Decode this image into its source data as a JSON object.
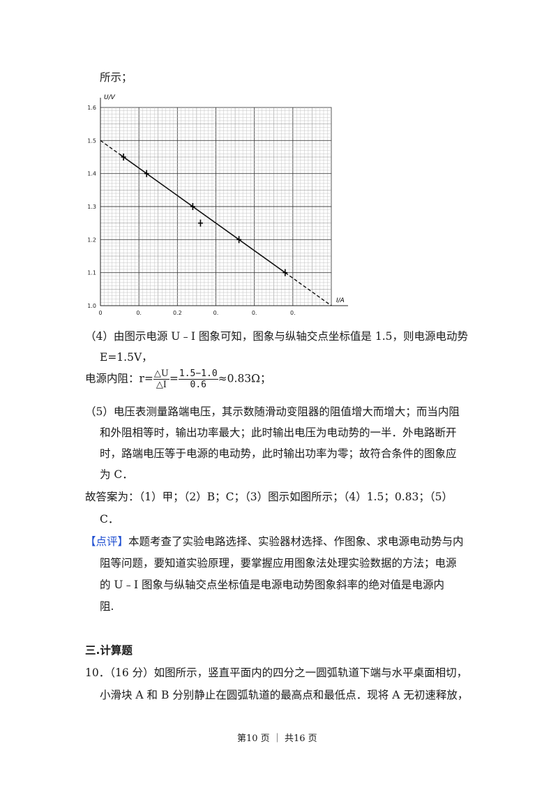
{
  "intro": "所示；",
  "chart_data": {
    "type": "scatter",
    "ylabel": "U/V",
    "xlabel": "I/A",
    "xlim": [
      0,
      0.6
    ],
    "ylim": [
      1.0,
      1.6
    ],
    "y_tick_labels": [
      "1.0",
      "1.1",
      "1.2",
      "1.3",
      "1.4",
      "1.5",
      "1.6"
    ],
    "y_tick_values": [
      1.0,
      1.1,
      1.2,
      1.3,
      1.4,
      1.5,
      1.6
    ],
    "x_tick_labels": [
      "0",
      "0.",
      "0.2",
      "0.",
      "0.",
      "0."
    ],
    "x_tick_values": [
      0,
      0.1,
      0.2,
      0.3,
      0.4,
      0.5
    ],
    "points": [
      {
        "x": 0.06,
        "y": 1.45
      },
      {
        "x": 0.12,
        "y": 1.4
      },
      {
        "x": 0.24,
        "y": 1.3
      },
      {
        "x": 0.26,
        "y": 1.25
      },
      {
        "x": 0.36,
        "y": 1.2
      },
      {
        "x": 0.48,
        "y": 1.1
      }
    ],
    "fit_line": {
      "from": {
        "x": 0,
        "y": 1.5
      },
      "to": {
        "x": 0.6,
        "y": 1.0
      }
    },
    "solid_segment": {
      "from": 0.05,
      "to": 0.48
    },
    "grid": true
  },
  "p4_line1": "（4）由图示电源 U﹣I 图象可知，图象与纵轴交点坐标值是 1.5，则电源电动势",
  "p4_line2": "E=1.5V，",
  "r_prefix": "电源内阻：r=",
  "r_frac1_num": "△U",
  "r_frac1_den": "△I",
  "r_eq": "=",
  "r_frac2_num": "1.5−1.0",
  "r_frac2_den": "0.6",
  "r_suffix": "≈0.83Ω；",
  "p5_lines": [
    "（5）电压表测量路端电压，其示数随滑动变阻器的阻值增大而增大；而当内阻",
    "和外阻相等时，输出功率最大；此时输出电压为电动势的一半．外电路断开",
    "时，路端电压等于电源的电动势，此时输出功率为零；故符合条件的图象应",
    "为 C．"
  ],
  "answer_line1": "故答案为：（1）甲；（2）B；C；（3）图示如图所示；（4）1.5；0.83；（5）",
  "answer_line2": "C．",
  "review_tag": "【点评】",
  "review_lines": [
    "本题考查了实验电路选择、实验器材选择、作图象、求电源电动势与内",
    "阻等问题，要知道实验原理，要掌握应用图象法处理实验数据的方法；电源",
    "的 U﹣I 图象与纵轴交点坐标值是电源电动势图象斜率的绝对值是电源内",
    "阻."
  ],
  "section_title": "三.计算题",
  "q10_lines": [
    "10．（16 分）如图所示，竖直平面内的四分之一圆弧轨道下端与水平桌面相切，",
    "小滑块 A 和 B 分别静止在圆弧轨道的最高点和最低点．现将 A 无初速释放，"
  ],
  "footer": "第10 页 ｜ 共16 页"
}
